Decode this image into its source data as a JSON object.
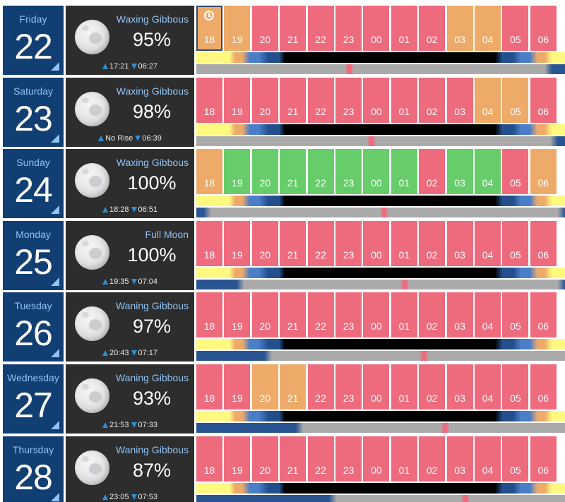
{
  "colors": {
    "bad": "#ee6b7e",
    "fair": "#eeaa68",
    "good": "#66cd6a",
    "date_tile_bg": "#123f73",
    "moon_tile_bg": "#2d2d2d",
    "accent_text": "#8fc1f1",
    "arrow": "#2d8fd3",
    "sun_day": "#fff980",
    "sun_twilight_orange": "#eeaa68",
    "sun_twilight_blue_light": "#4a7ec8",
    "sun_twilight_blue_dark": "#234f8c",
    "sun_night": "#000000",
    "moon_up": "#2a5593",
    "moon_down": "#aaaaaa",
    "moon_transit": "#ee6b7e"
  },
  "hours": [
    "18",
    "19",
    "20",
    "21",
    "22",
    "23",
    "00",
    "01",
    "02",
    "03",
    "04",
    "05",
    "06"
  ],
  "days": [
    {
      "weekday": "Friday",
      "date": "22",
      "moon": {
        "phase": "Waxing Gibbous",
        "illumination": "95%",
        "rise": "17:21",
        "set": "06:27"
      },
      "current_hour_index": 0,
      "hour_ratings": [
        "fair",
        "fair",
        "bad",
        "bad",
        "bad",
        "bad",
        "bad",
        "bad",
        "bad",
        "fair",
        "fair",
        "bad",
        "bad"
      ],
      "moonbar": {
        "up_before": 0,
        "up_after": 95.5,
        "transit": 41.5
      }
    },
    {
      "weekday": "Saturday",
      "date": "23",
      "moon": {
        "phase": "Waxing Gibbous",
        "illumination": "98%",
        "rise": "No Rise",
        "set": "06:39"
      },
      "current_hour_index": -1,
      "hour_ratings": [
        "bad",
        "bad",
        "bad",
        "bad",
        "bad",
        "bad",
        "bad",
        "bad",
        "bad",
        "bad",
        "fair",
        "fair",
        "bad"
      ],
      "moonbar": {
        "up_before": 0,
        "up_after": 97,
        "transit": 47.5
      }
    },
    {
      "weekday": "Sunday",
      "date": "24",
      "moon": {
        "phase": "Waxing Gibbous",
        "illumination": "100%",
        "rise": "18:28",
        "set": "06:51"
      },
      "current_hour_index": -1,
      "hour_ratings": [
        "fair",
        "good",
        "good",
        "good",
        "good",
        "good",
        "good",
        "good",
        "bad",
        "good",
        "good",
        "bad",
        "fair"
      ],
      "moonbar": {
        "up_before": 3,
        "up_after": 99,
        "transit": 51
      }
    },
    {
      "weekday": "Monday",
      "date": "25",
      "moon": {
        "phase": "Full Moon",
        "illumination": "100%",
        "rise": "19:35",
        "set": "07:04"
      },
      "current_hour_index": -1,
      "hour_ratings": [
        "bad",
        "bad",
        "bad",
        "bad",
        "bad",
        "bad",
        "bad",
        "bad",
        "bad",
        "bad",
        "bad",
        "bad",
        "bad"
      ],
      "moonbar": {
        "up_before": 12,
        "up_after": 99,
        "transit": 56.5
      }
    },
    {
      "weekday": "Tuesday",
      "date": "26",
      "moon": {
        "phase": "Waning Gibbous",
        "illumination": "97%",
        "rise": "20:43",
        "set": "07:17"
      },
      "current_hour_index": -1,
      "hour_ratings": [
        "bad",
        "bad",
        "bad",
        "bad",
        "bad",
        "bad",
        "bad",
        "bad",
        "bad",
        "bad",
        "bad",
        "bad",
        "bad"
      ],
      "moonbar": {
        "up_before": 19.5,
        "up_after": 100,
        "transit": 61.8
      }
    },
    {
      "weekday": "Wednesday",
      "date": "27",
      "moon": {
        "phase": "Waning Gibbous",
        "illumination": "93%",
        "rise": "21:53",
        "set": "07:33"
      },
      "current_hour_index": -1,
      "hour_ratings": [
        "bad",
        "bad",
        "fair",
        "fair",
        "bad",
        "bad",
        "bad",
        "bad",
        "bad",
        "bad",
        "bad",
        "bad",
        "bad"
      ],
      "moonbar": {
        "up_before": 28,
        "up_after": 100,
        "transit": 67.5
      }
    },
    {
      "weekday": "Thursday",
      "date": "28",
      "moon": {
        "phase": "Waning Gibbous",
        "illumination": "87%",
        "rise": "23:05",
        "set": "07:53"
      },
      "current_hour_index": -1,
      "hour_ratings": [
        "bad",
        "bad",
        "bad",
        "bad",
        "bad",
        "bad",
        "bad",
        "bad",
        "bad",
        "bad",
        "bad",
        "bad",
        "bad"
      ],
      "moonbar": {
        "up_before": 37,
        "up_after": 100,
        "transit": 73
      }
    }
  ]
}
